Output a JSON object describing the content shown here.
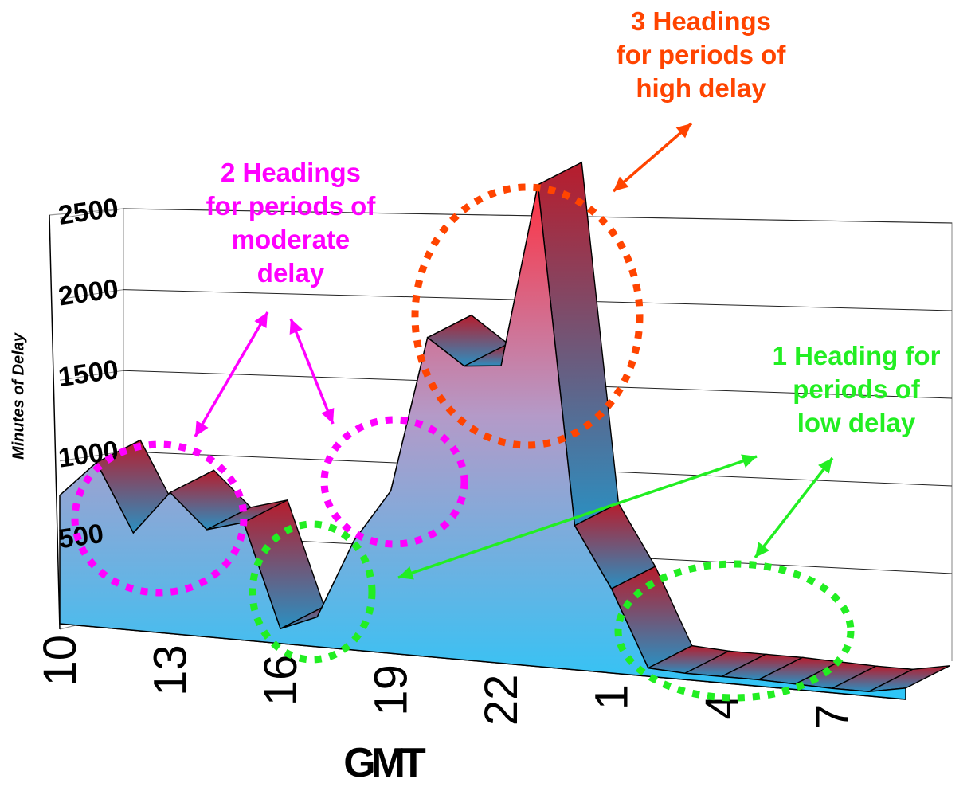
{
  "chart_data": {
    "type": "area",
    "title": "",
    "xlabel": "GMT",
    "ylabel": "Minutes of Delay",
    "x": [
      10,
      11,
      12,
      13,
      14,
      15,
      16,
      17,
      18,
      19,
      20,
      21,
      22,
      23,
      24,
      1,
      2,
      3,
      4,
      5,
      6,
      7,
      8,
      9
    ],
    "x_tick_labels": [
      "10",
      "13",
      "16",
      "19",
      "22",
      "1",
      "4",
      "7"
    ],
    "x_tick_values": [
      10,
      13,
      16,
      19,
      22,
      1,
      4,
      7
    ],
    "values": [
      760,
      960,
      560,
      800,
      600,
      650,
      80,
      160,
      580,
      850,
      1650,
      1500,
      1500,
      2400,
      710,
      410,
      40,
      30,
      30,
      30,
      25,
      20,
      20,
      50
    ],
    "y_tick_labels": [
      "500",
      "1000",
      "1500",
      "2000",
      "2500"
    ],
    "ylim": [
      0,
      2500
    ],
    "grid": true,
    "colors": {
      "front_top": "#3fc8f2",
      "front_bottom": "#2cc3f5",
      "front_peak": "#ff3040",
      "face_red": "#b81c2c",
      "face_blue": "#2a8fc0"
    }
  },
  "annotations": {
    "high": {
      "lines": [
        "3 Headings",
        "for periods of",
        "high delay"
      ],
      "color": "#ff4400"
    },
    "moderate": {
      "lines": [
        "2 Headings",
        "for periods of",
        "moderate",
        "delay"
      ],
      "color": "#ff00ff"
    },
    "low": {
      "lines": [
        "1 Heading for",
        "periods of",
        "low delay"
      ],
      "color": "#22ee22"
    }
  }
}
